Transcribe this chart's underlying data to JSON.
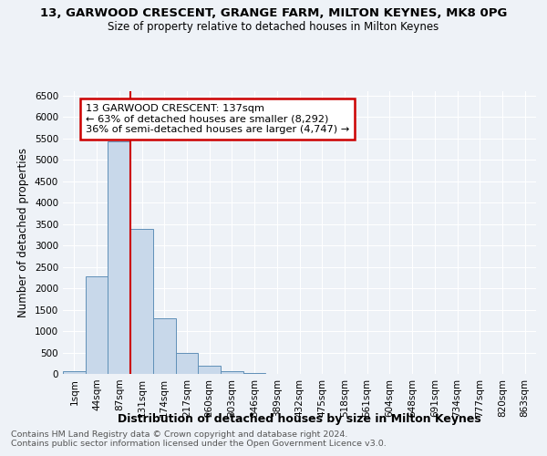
{
  "title": "13, GARWOOD CRESCENT, GRANGE FARM, MILTON KEYNES, MK8 0PG",
  "subtitle": "Size of property relative to detached houses in Milton Keynes",
  "xlabel": "Distribution of detached houses by size in Milton Keynes",
  "ylabel": "Number of detached properties",
  "categories": [
    "1sqm",
    "44sqm",
    "87sqm",
    "131sqm",
    "174sqm",
    "217sqm",
    "260sqm",
    "303sqm",
    "346sqm",
    "389sqm",
    "432sqm",
    "475sqm",
    "518sqm",
    "561sqm",
    "604sqm",
    "648sqm",
    "691sqm",
    "734sqm",
    "777sqm",
    "820sqm",
    "863sqm"
  ],
  "values": [
    55,
    2270,
    5430,
    3380,
    1300,
    490,
    190,
    70,
    30,
    0,
    0,
    0,
    0,
    0,
    0,
    0,
    0,
    0,
    0,
    0,
    0
  ],
  "bar_color": "#c8d8ea",
  "bar_edge_color": "#6090b8",
  "bar_edge_width": 0.7,
  "ylim": [
    0,
    6600
  ],
  "yticks": [
    0,
    500,
    1000,
    1500,
    2000,
    2500,
    3000,
    3500,
    4000,
    4500,
    5000,
    5500,
    6000,
    6500
  ],
  "red_line_index": 3,
  "red_line_color": "#cc0000",
  "annotation_text": "13 GARWOOD CRESCENT: 137sqm\n← 63% of detached houses are smaller (8,292)\n36% of semi-detached houses are larger (4,747) →",
  "annotation_box_color": "#ffffff",
  "annotation_box_edge_color": "#cc0000",
  "bg_color": "#eef2f7",
  "grid_color": "#ffffff",
  "footnote1": "Contains HM Land Registry data © Crown copyright and database right 2024.",
  "footnote2": "Contains public sector information licensed under the Open Government Licence v3.0.",
  "title_fontsize": 9.5,
  "subtitle_fontsize": 8.5,
  "xlabel_fontsize": 9,
  "ylabel_fontsize": 8.5,
  "tick_fontsize": 7.5,
  "footnote_fontsize": 6.8,
  "annotation_fontsize": 8.2
}
